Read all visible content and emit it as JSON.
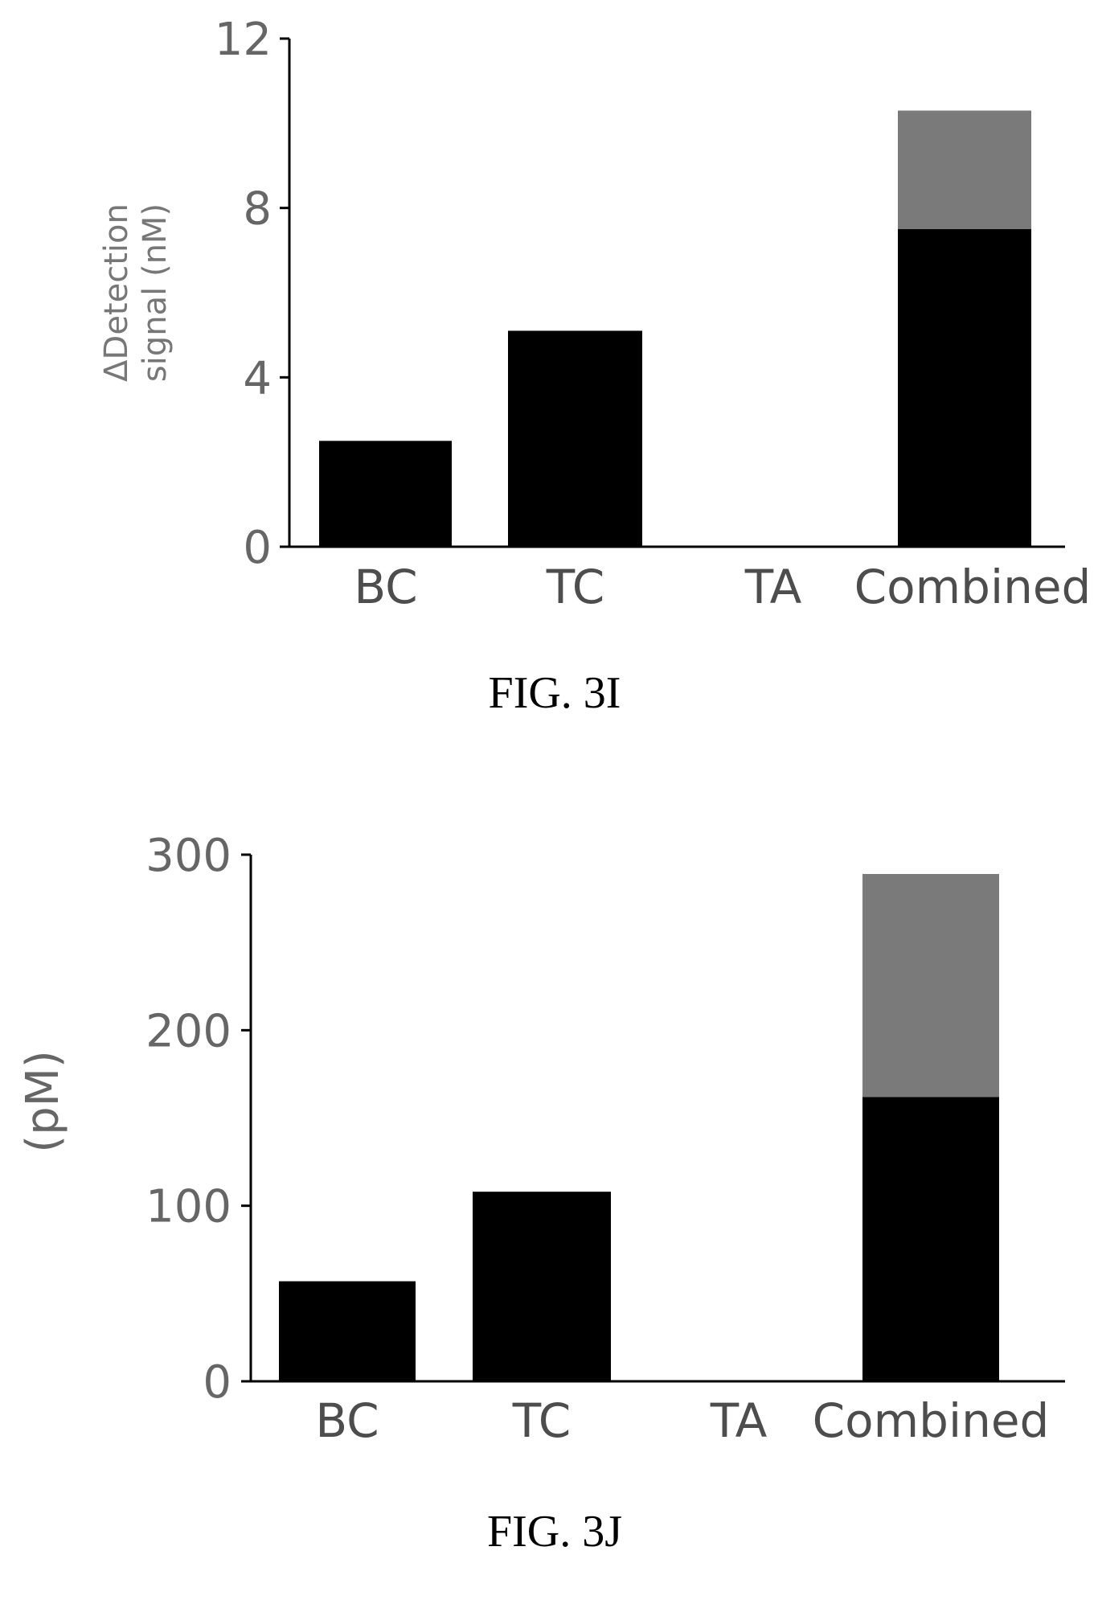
{
  "chart_data": [
    {
      "type": "bar",
      "stacked": true,
      "caption": "FIG. 3I",
      "ylabel_lines": [
        "ΔDetection",
        "signal (nM)"
      ],
      "ylim": [
        0,
        12
      ],
      "yticks": [
        0,
        4,
        8,
        12
      ],
      "ytick_labels": [
        "0",
        "4",
        "8",
        "12"
      ],
      "categories": [
        "BC",
        "TC",
        "TA",
        "Combined"
      ],
      "series": [
        {
          "values": [
            2.5,
            5.1,
            0,
            7.5
          ],
          "color": "#000000"
        },
        {
          "values": [
            0,
            0,
            0,
            2.8
          ],
          "color": "#7a7a7a"
        }
      ]
    },
    {
      "type": "bar",
      "stacked": true,
      "caption": "FIG. 3J",
      "ylabel_lines": [
        "(pM)"
      ],
      "ylim": [
        0,
        300
      ],
      "yticks": [
        0,
        100,
        200,
        300
      ],
      "ytick_labels": [
        "0",
        "100",
        "200",
        "300"
      ],
      "categories": [
        "BC",
        "TC",
        "TA",
        "Combined"
      ],
      "series": [
        {
          "values": [
            57,
            108,
            0,
            162
          ],
          "color": "#000000"
        },
        {
          "values": [
            0,
            0,
            0,
            127
          ],
          "color": "#7a7a7a"
        }
      ]
    }
  ]
}
